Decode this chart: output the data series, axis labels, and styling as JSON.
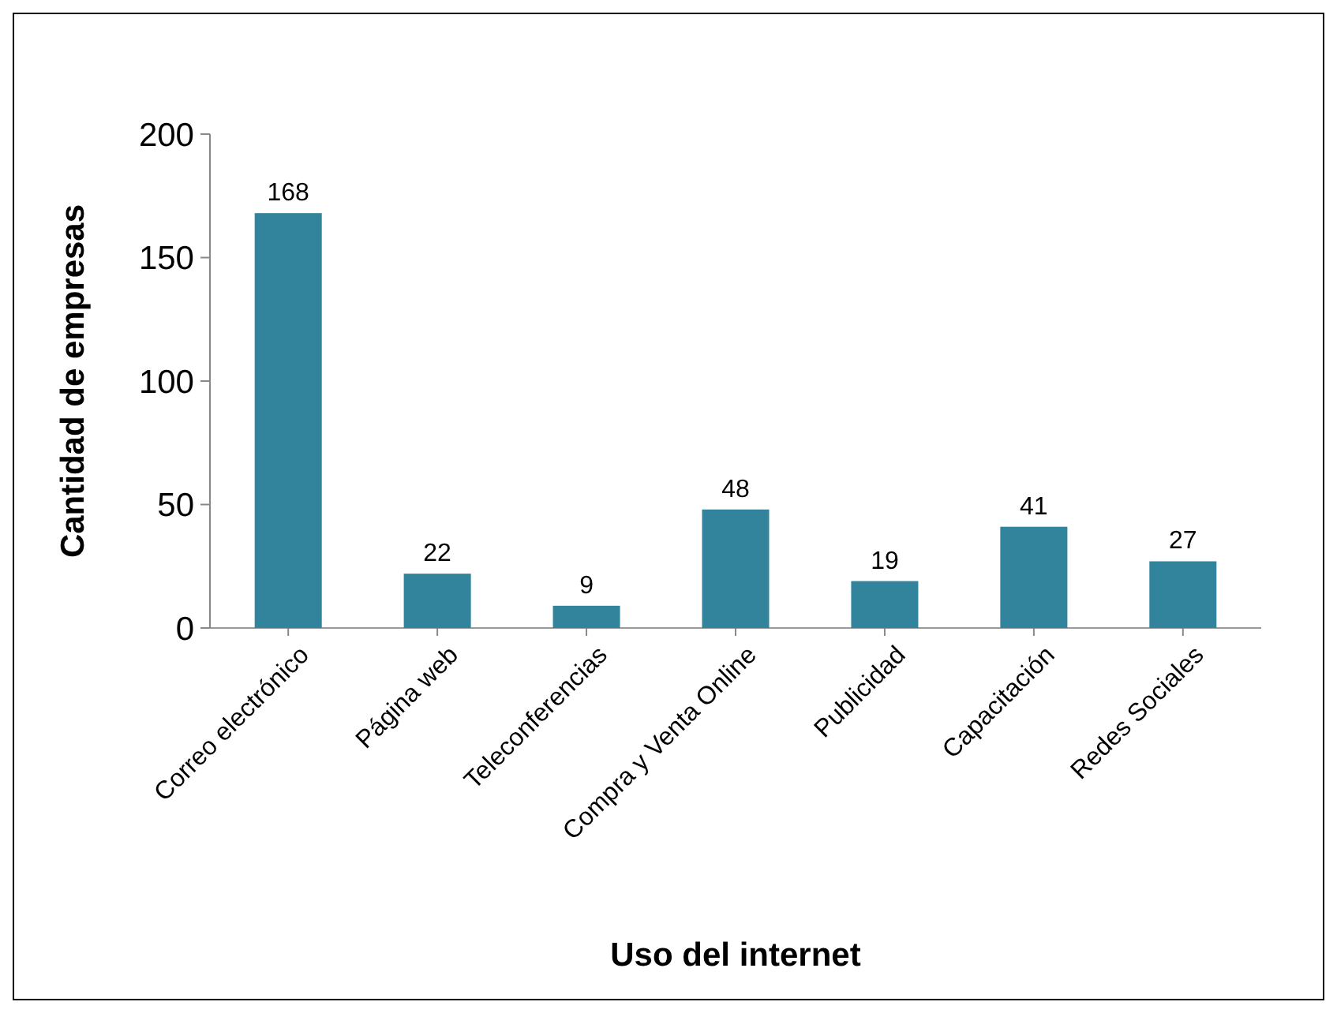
{
  "chart_data": {
    "type": "bar",
    "xlabel": "Uso del internet",
    "ylabel": "Cantidad de empresas",
    "categories": [
      "Correo electrónico",
      "Página web",
      "Teleconferencias",
      "Compra y Venta Online",
      "Publicidad",
      "Capacitación",
      "Redes Sociales"
    ],
    "values": [
      168,
      22,
      9,
      48,
      19,
      41,
      27
    ],
    "color": "#31849b",
    "ylim": [
      0,
      200
    ],
    "yticks": [
      0,
      50,
      100,
      150,
      200
    ],
    "data_labels": true
  }
}
